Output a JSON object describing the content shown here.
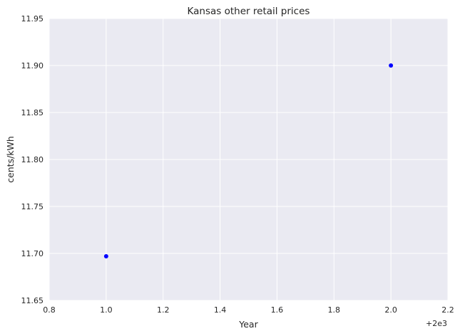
{
  "chart_data": {
    "type": "scatter",
    "title": "Kansas   other retail prices",
    "xlabel": "Year",
    "ylabel": "cents/kWh",
    "x_offset_label": "+2e3",
    "xlim": [
      0.8,
      2.2
    ],
    "ylim": [
      11.65,
      11.95
    ],
    "x_ticks": [
      0.8,
      1.0,
      1.2,
      1.4,
      1.6,
      1.8,
      2.0,
      2.2
    ],
    "x_tick_labels": [
      "0.8",
      "1.0",
      "1.2",
      "1.4",
      "1.6",
      "1.8",
      "2.0",
      "2.2"
    ],
    "y_ticks": [
      11.65,
      11.7,
      11.75,
      11.8,
      11.85,
      11.9,
      11.95
    ],
    "y_tick_labels": [
      "11.65",
      "11.70",
      "11.75",
      "11.80",
      "11.85",
      "11.90",
      "11.95"
    ],
    "grid": true,
    "series": [
      {
        "name": "other",
        "color": "#0000ff",
        "x": [
          1.0,
          2.0
        ],
        "y": [
          11.697,
          11.9
        ]
      }
    ],
    "background_color": "#eaeaf2",
    "grid_color": "#ffffff"
  }
}
